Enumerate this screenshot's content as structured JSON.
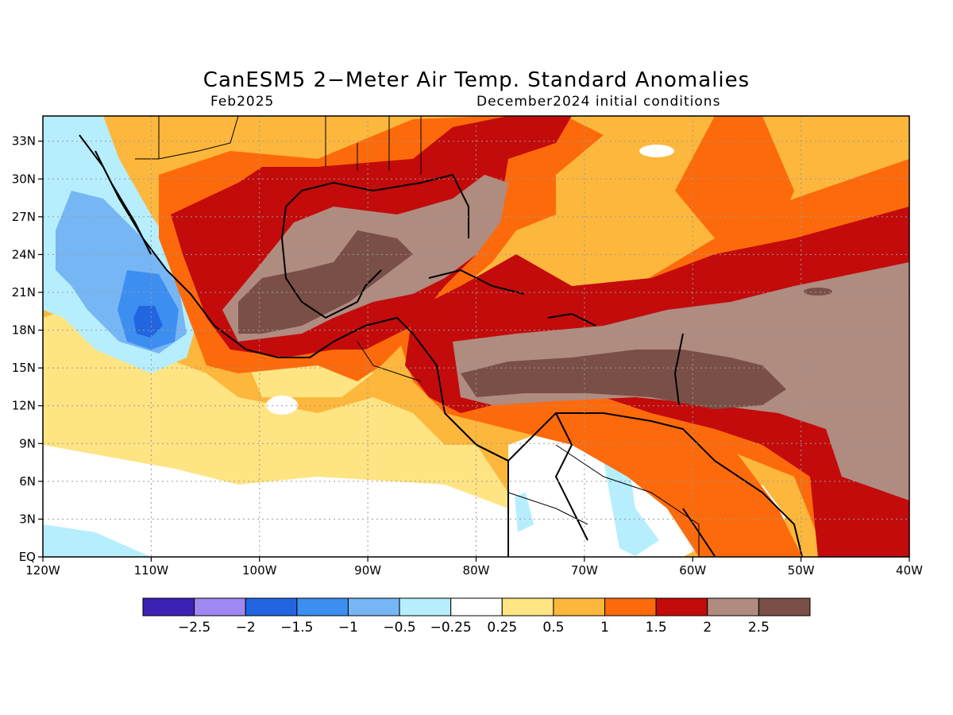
{
  "title": "CanESM5 2−Meter Air Temp. Standard Anomalies",
  "subtitle_left": "Feb2025",
  "subtitle_right": "December2024 initial conditions",
  "map": {
    "lon_range": [
      -120,
      -40
    ],
    "lat_range": [
      0,
      35
    ],
    "lon_ticks": [
      {
        "value": -120,
        "label": "120W"
      },
      {
        "value": -110,
        "label": "110W"
      },
      {
        "value": -100,
        "label": "100W"
      },
      {
        "value": -90,
        "label": "90W"
      },
      {
        "value": -80,
        "label": "80W"
      },
      {
        "value": -70,
        "label": "70W"
      },
      {
        "value": -60,
        "label": "60W"
      },
      {
        "value": -50,
        "label": "50W"
      },
      {
        "value": -40,
        "label": "40W"
      }
    ],
    "lat_ticks": [
      {
        "value": 0,
        "label": "EQ"
      },
      {
        "value": 3,
        "label": "3N"
      },
      {
        "value": 6,
        "label": "6N"
      },
      {
        "value": 9,
        "label": "9N"
      },
      {
        "value": 12,
        "label": "12N"
      },
      {
        "value": 15,
        "label": "15N"
      },
      {
        "value": 18,
        "label": "18N"
      },
      {
        "value": 21,
        "label": "21N"
      },
      {
        "value": 24,
        "label": "24N"
      },
      {
        "value": 27,
        "label": "27N"
      },
      {
        "value": 30,
        "label": "30N"
      },
      {
        "value": 33,
        "label": "33N"
      }
    ],
    "grid": true
  },
  "colorbar": {
    "colors": [
      "#3b22b4",
      "#9f88f2",
      "#2166e0",
      "#3d8ef1",
      "#77b6f5",
      "#b6eefd",
      "#ffffff",
      "#fee483",
      "#fdb73c",
      "#fd6a0b",
      "#c30b0b",
      "#b08b80",
      "#7a4f47"
    ],
    "labels": [
      "−2.5",
      "−2",
      "−1.5",
      "−1",
      "−0.5",
      "−0.25",
      "0.25",
      "0.5",
      "1",
      "1.5",
      "2",
      "2.5"
    ]
  }
}
